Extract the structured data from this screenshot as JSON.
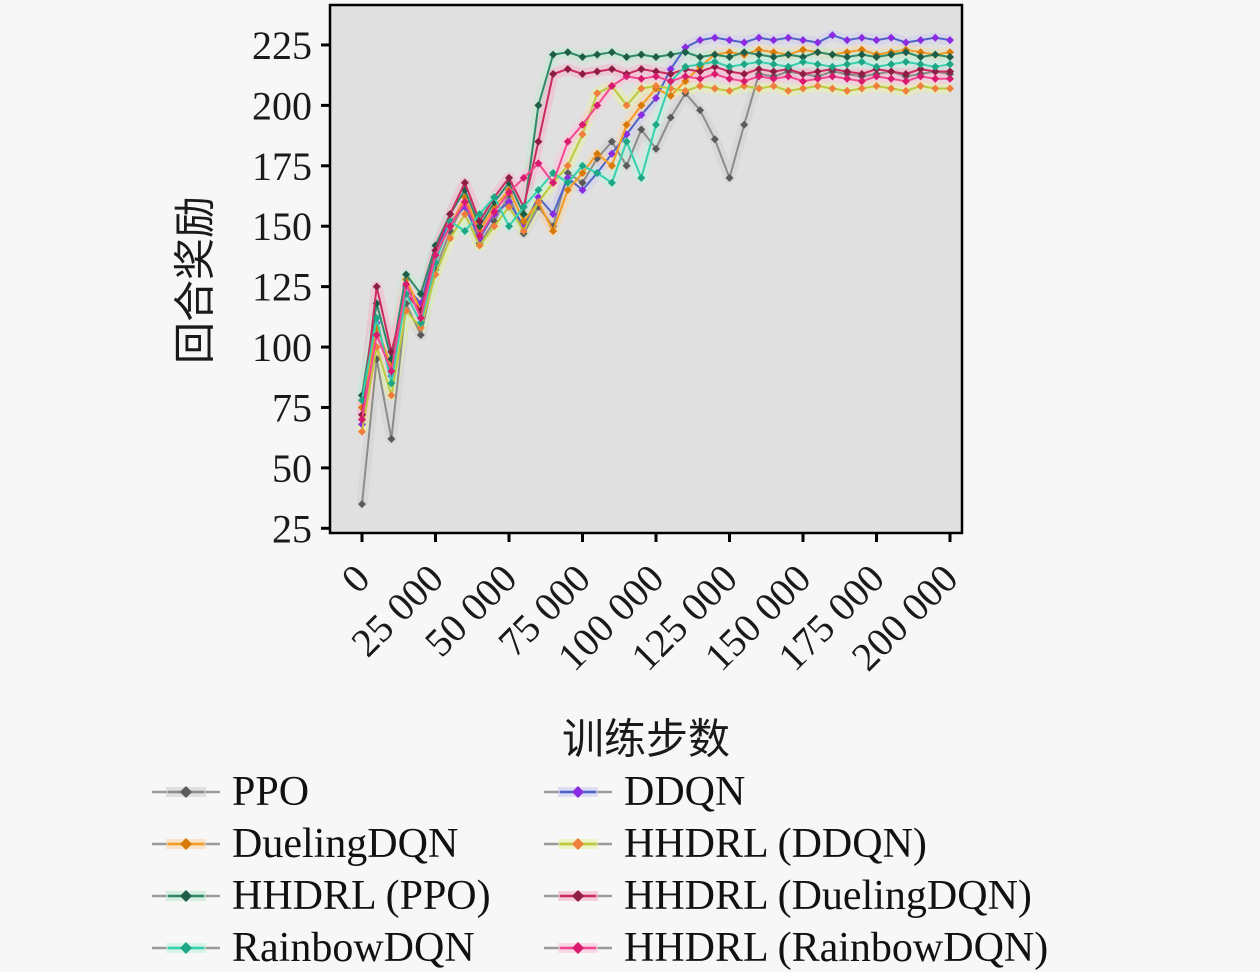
{
  "figure": {
    "page_bg": "#f7f7f7",
    "plot_bg": "#e0e0e0",
    "axis_color": "#000000"
  },
  "chart_data": {
    "type": "line",
    "title": "",
    "xlabel": "训练步数",
    "ylabel": "回合奖励",
    "grid": false,
    "legend_position": "below-two-columns",
    "xlim": [
      -12000,
      212000
    ],
    "ylim": [
      23,
      242
    ],
    "y_ticks": [
      25,
      50,
      75,
      100,
      125,
      150,
      175,
      200,
      225
    ],
    "x_ticks": [
      {
        "value": 0,
        "label": "0"
      },
      {
        "value": 25000,
        "label": "25 000"
      },
      {
        "value": 50000,
        "label": "50 000"
      },
      {
        "value": 75000,
        "label": "75 000"
      },
      {
        "value": 100000,
        "label": "100 000"
      },
      {
        "value": 125000,
        "label": "125 000"
      },
      {
        "value": 150000,
        "label": "150 000"
      },
      {
        "value": 175000,
        "label": "175 000"
      },
      {
        "value": 200000,
        "label": "200 000"
      }
    ],
    "x": [
      0,
      5000,
      10000,
      15000,
      20000,
      25000,
      30000,
      35000,
      40000,
      45000,
      50000,
      55000,
      60000,
      65000,
      70000,
      75000,
      80000,
      85000,
      90000,
      95000,
      100000,
      105000,
      110000,
      115000,
      120000,
      125000,
      130000,
      135000,
      140000,
      145000,
      150000,
      155000,
      160000,
      165000,
      170000,
      175000,
      180000,
      185000,
      190000,
      195000,
      200000
    ],
    "series": [
      {
        "name": "PPO",
        "slug": "ppo",
        "line_color": "#8c8c8c",
        "band_color": "#cfcfcf",
        "marker_color": "#5a5a5a",
        "values": [
          35,
          95,
          62,
          118,
          105,
          132,
          148,
          160,
          143,
          152,
          163,
          147,
          158,
          150,
          172,
          168,
          178,
          185,
          175,
          190,
          182,
          195,
          205,
          198,
          186,
          170,
          192,
          213,
          212,
          214,
          213,
          212,
          214,
          213,
          212,
          213,
          214,
          212,
          213,
          214,
          213
        ]
      },
      {
        "name": "DDQN",
        "slug": "ddqn",
        "line_color": "#4e63c8",
        "band_color": "#cdc9f0",
        "marker_color": "#8a2be2",
        "values": [
          68,
          110,
          88,
          125,
          118,
          140,
          152,
          158,
          145,
          155,
          160,
          150,
          162,
          155,
          170,
          165,
          172,
          180,
          188,
          196,
          203,
          215,
          224,
          227,
          228,
          227,
          226,
          228,
          227,
          228,
          227,
          226,
          229,
          227,
          228,
          227,
          228,
          226,
          227,
          228,
          227
        ]
      },
      {
        "name": "DuelingDQN",
        "slug": "duelingdqn",
        "line_color": "#f59a23",
        "band_color": "#f8d8a8",
        "marker_color": "#d97908",
        "values": [
          75,
          108,
          92,
          128,
          115,
          138,
          150,
          162,
          148,
          158,
          165,
          152,
          160,
          148,
          165,
          172,
          180,
          175,
          192,
          200,
          207,
          204,
          210,
          216,
          221,
          222,
          221,
          223,
          222,
          221,
          223,
          222,
          221,
          222,
          223,
          221,
          222,
          223,
          222,
          221,
          222
        ]
      },
      {
        "name": "HHDRL (DDQN)",
        "slug": "hhdrl-ddqn",
        "line_color": "#bdca3e",
        "band_color": "#e7f2a2",
        "marker_color": "#ef7f3a",
        "values": [
          65,
          100,
          80,
          115,
          108,
          130,
          145,
          155,
          142,
          150,
          158,
          148,
          160,
          168,
          175,
          188,
          205,
          208,
          200,
          207,
          208,
          207,
          206,
          208,
          207,
          206,
          208,
          207,
          208,
          206,
          207,
          208,
          207,
          206,
          207,
          208,
          207,
          206,
          208,
          207,
          207
        ]
      },
      {
        "name": "HHDRL (PPO)",
        "slug": "hhdrl-ppo",
        "line_color": "#2e8b6a",
        "band_color": "#bfe9cf",
        "marker_color": "#1d5c46",
        "values": [
          80,
          118,
          95,
          130,
          122,
          142,
          155,
          165,
          150,
          160,
          168,
          155,
          200,
          221,
          222,
          220,
          221,
          222,
          220,
          221,
          220,
          221,
          222,
          220,
          221,
          220,
          222,
          221,
          220,
          221,
          220,
          222,
          221,
          220,
          221,
          220,
          221,
          222,
          220,
          221,
          220
        ]
      },
      {
        "name": "HHDRL (DuelingDQN)",
        "slug": "hhdrl-duelingdqn",
        "line_color": "#cc2a60",
        "band_color": "#f3b1c8",
        "marker_color": "#8e1d44",
        "values": [
          72,
          125,
          98,
          122,
          115,
          140,
          155,
          168,
          152,
          162,
          170,
          158,
          185,
          213,
          215,
          213,
          214,
          215,
          213,
          215,
          214,
          213,
          215,
          214,
          216,
          214,
          213,
          215,
          214,
          215,
          213,
          214,
          215,
          214,
          213,
          215,
          214,
          213,
          215,
          214,
          214
        ]
      },
      {
        "name": "RainbowDQN",
        "slug": "rainbowdqn",
        "line_color": "#35d1ae",
        "band_color": "#c2f1e0",
        "marker_color": "#1da787",
        "values": [
          78,
          112,
          85,
          122,
          110,
          135,
          152,
          148,
          155,
          162,
          150,
          158,
          165,
          172,
          168,
          175,
          172,
          168,
          185,
          170,
          192,
          210,
          216,
          217,
          218,
          216,
          217,
          218,
          217,
          216,
          218,
          217,
          216,
          217,
          218,
          216,
          217,
          218,
          217,
          216,
          217
        ]
      },
      {
        "name": "HHDRL (RainbowDQN)",
        "slug": "hhdrl-rainbowdqn",
        "line_color": "#f4478f",
        "band_color": "#fbc3da",
        "marker_color": "#d81b6f",
        "values": [
          70,
          105,
          90,
          126,
          112,
          138,
          150,
          160,
          146,
          156,
          164,
          170,
          176,
          168,
          185,
          192,
          200,
          208,
          212,
          211,
          212,
          210,
          212,
          211,
          213,
          211,
          210,
          212,
          211,
          212,
          210,
          211,
          212,
          211,
          210,
          212,
          211,
          210,
          212,
          211,
          211
        ]
      }
    ]
  }
}
